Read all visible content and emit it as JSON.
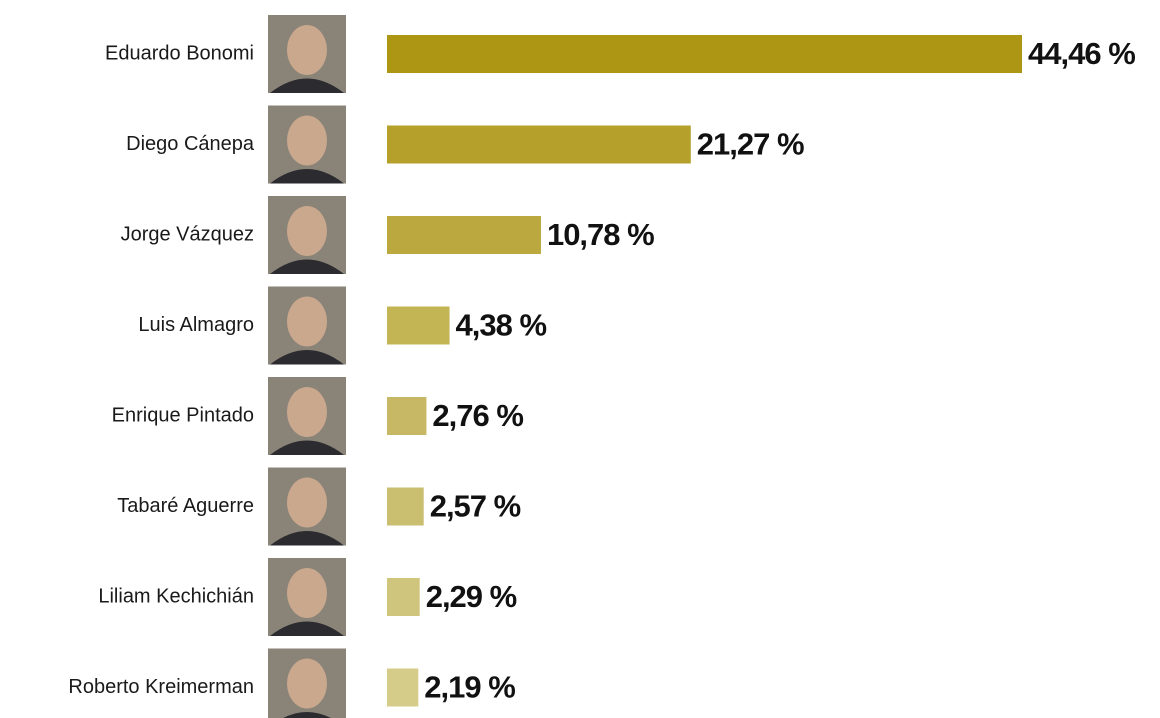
{
  "chart_data": {
    "type": "bar",
    "orientation": "horizontal",
    "categories": [
      "Eduardo Bonomi",
      "Diego Cánepa",
      "Jorge Vázquez",
      "Luis Almagro",
      "Enrique Pintado",
      "Tabaré Aguerre",
      "Liliam Kechichián",
      "Roberto Kreimerman"
    ],
    "values": [
      44.46,
      21.27,
      10.78,
      4.38,
      2.76,
      2.57,
      2.29,
      2.19
    ],
    "value_labels": [
      "44,46 %",
      "21,27 %",
      "10,78 %",
      "4,38 %",
      "2,76 %",
      "2,57 %",
      "2,29 %",
      "2,19 %"
    ],
    "colors": [
      "#ad9614",
      "#b4a02a",
      "#bba93f",
      "#c3b454",
      "#c6b865",
      "#cabe70",
      "#cfc57c",
      "#d5cc8a"
    ]
  }
}
